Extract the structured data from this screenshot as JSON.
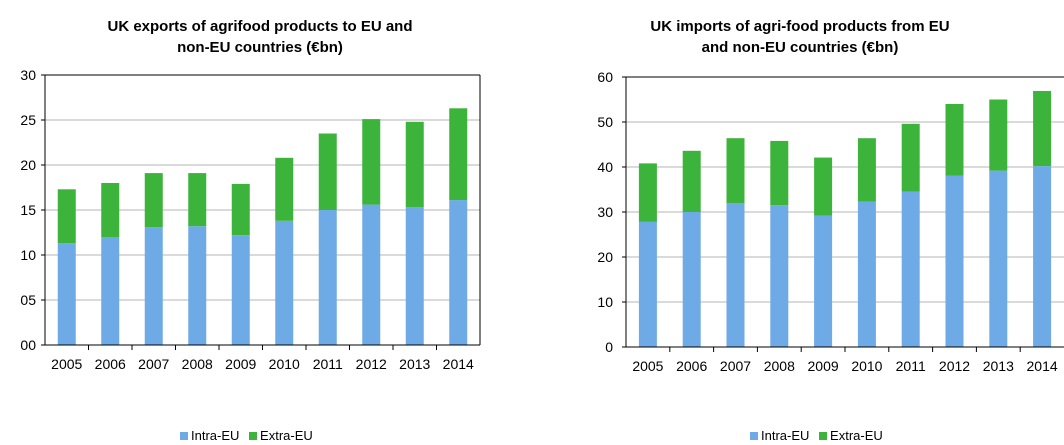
{
  "chart_data": [
    {
      "type": "bar",
      "stacked": true,
      "title": "UK exports of agrifood products to EU and non-EU countries (€bn)",
      "title_lines": [
        "UK exports of agrifood products to EU and",
        "non-EU countries (€bn)"
      ],
      "categories": [
        "2005",
        "2006",
        "2007",
        "2008",
        "2009",
        "2010",
        "2011",
        "2012",
        "2013",
        "2014"
      ],
      "series": [
        {
          "name": "Intra-EU",
          "color": "#6eaae6",
          "values": [
            11.3,
            12.0,
            13.1,
            13.2,
            12.2,
            13.8,
            15.0,
            15.6,
            15.3,
            16.1
          ]
        },
        {
          "name": "Extra-EU",
          "color": "#3cb43c",
          "values": [
            6.0,
            6.0,
            6.0,
            5.9,
            5.7,
            7.0,
            8.5,
            9.5,
            9.5,
            10.2
          ]
        }
      ],
      "ylim": [
        0,
        30
      ],
      "yticks": [
        0,
        5,
        10,
        15,
        20,
        25,
        30
      ],
      "ytick_labels": [
        "00",
        "05",
        "10",
        "15",
        "20",
        "25",
        "30"
      ],
      "xlabel": "",
      "ylabel": "",
      "grid": true,
      "legend_position": "bottom"
    },
    {
      "type": "bar",
      "stacked": true,
      "title": "UK imports of agri-food products from EU and non-EU countries (€bn)",
      "title_lines": [
        "UK imports of agri-food products from EU",
        "and non-EU countries (€bn)"
      ],
      "categories": [
        "2005",
        "2006",
        "2007",
        "2008",
        "2009",
        "2010",
        "2011",
        "2012",
        "2013",
        "2014"
      ],
      "series": [
        {
          "name": "Intra-EU",
          "color": "#6eaae6",
          "values": [
            27.8,
            30.0,
            32.0,
            31.5,
            29.2,
            32.3,
            34.5,
            38.1,
            39.2,
            40.2
          ]
        },
        {
          "name": "Extra-EU",
          "color": "#3cb43c",
          "values": [
            13.0,
            13.6,
            14.4,
            14.3,
            12.9,
            14.1,
            15.1,
            15.9,
            15.8,
            16.7
          ]
        }
      ],
      "ylim": [
        0,
        60
      ],
      "yticks": [
        0,
        10,
        20,
        30,
        40,
        50,
        60
      ],
      "ytick_labels": [
        "0",
        "10",
        "20",
        "30",
        "40",
        "50",
        "60"
      ],
      "xlabel": "",
      "ylabel": "",
      "grid": true,
      "legend_position": "bottom"
    }
  ]
}
